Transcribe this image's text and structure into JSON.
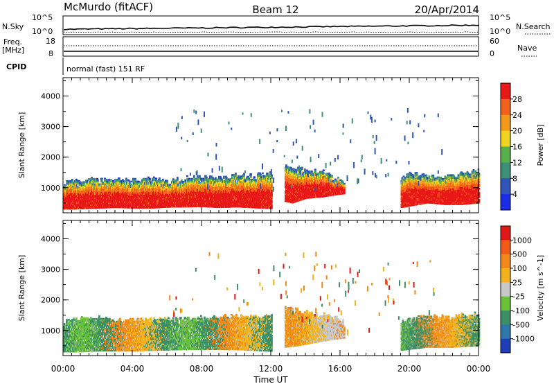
{
  "header": {
    "station": "McMurdo (fitACF)",
    "beam": "Beam 12",
    "date": "20/Apr/2014"
  },
  "strips": {
    "nsky_label": "N.Sky",
    "nsky_ticks": [
      "10^5",
      "10^0"
    ],
    "nsearch_label": "N.Search",
    "nsearch_ticks": [
      "10^5",
      "10^0"
    ],
    "freq_label": "Freq.",
    "freq_unit": "[MHz]",
    "freq_ticks": [
      "18",
      "8"
    ],
    "nave_label": "Nave",
    "nave_ticks": [
      "60",
      "0"
    ],
    "cpid_label": "CPID",
    "cpid_text": "normal (fast) 151 RF"
  },
  "chart_data": [
    {
      "type": "heatmap",
      "title": "",
      "xlabel": "Time UT",
      "ylabel": "Slant Range [km]",
      "x_ticks": [
        "00:00",
        "04:00",
        "08:00",
        "12:00",
        "16:00",
        "20:00",
        "00:00"
      ],
      "y_ticks": [
        1000,
        2000,
        3000,
        4000
      ],
      "ylim": [
        180,
        4600
      ],
      "colorbar": {
        "label": "Power [dB]",
        "ticks": [
          "4",
          "8",
          "12",
          "16",
          "20",
          "24",
          "28"
        ],
        "colors": [
          "#1c2be6",
          "#2f55b8",
          "#3d8f78",
          "#58b04a",
          "#f0d320",
          "#f29a1a",
          "#f2621a",
          "#e81818"
        ]
      },
      "series": [
        {
          "hours": [
            0,
            0.5,
            1.5,
            3,
            4,
            5,
            6,
            7,
            8,
            9,
            10,
            11,
            12
          ],
          "bottom_km": [
            300,
            300,
            320,
            350,
            330,
            330,
            360,
            370,
            380,
            350,
            370,
            340,
            320
          ],
          "top_km": [
            1100,
            1150,
            1200,
            1200,
            1180,
            1250,
            1150,
            1250,
            1300,
            1250,
            1350,
            1350,
            1400
          ]
        },
        {
          "hours": [
            12.8,
            13.2,
            14,
            15,
            15.5,
            16.2
          ],
          "bottom_km": [
            550,
            500,
            650,
            700,
            750,
            800
          ],
          "top_km": [
            1700,
            1600,
            1500,
            1450,
            1300,
            1200
          ]
        },
        {
          "hours": [
            19.5,
            20,
            21,
            22,
            23,
            24
          ],
          "bottom_km": [
            350,
            400,
            500,
            450,
            450,
            500
          ],
          "top_km": [
            1250,
            1400,
            1350,
            1300,
            1400,
            1500
          ]
        }
      ]
    },
    {
      "type": "heatmap",
      "title": "",
      "xlabel": "Time UT",
      "ylabel": "Slant Range [km]",
      "x_ticks": [
        "00:00",
        "04:00",
        "08:00",
        "12:00",
        "16:00",
        "20:00",
        "00:00"
      ],
      "y_ticks": [
        1000,
        2000,
        3000,
        4000
      ],
      "ylim": [
        180,
        4600
      ],
      "colorbar": {
        "label": "Velocity [m s^-1]",
        "ticks": [
          "1000",
          "500",
          "100",
          "25",
          "-25",
          "-100",
          "-500",
          "-1000"
        ],
        "colors": [
          "#1f3fb8",
          "#2f77a8",
          "#3d8f66",
          "#6ac23a",
          "#c8c8c8",
          "#f2b21a",
          "#f28a1a",
          "#f25a1a",
          "#e01818"
        ]
      },
      "series": [
        {
          "hours": [
            0,
            1,
            2,
            4,
            6,
            8,
            10,
            12
          ],
          "bottom_km": [
            300,
            300,
            330,
            330,
            360,
            380,
            370,
            320
          ],
          "top_km": [
            1250,
            1300,
            1350,
            1300,
            1300,
            1350,
            1400,
            1400
          ]
        },
        {
          "hours": [
            12.8,
            13.5,
            14.5,
            15.5,
            16.2
          ],
          "bottom_km": [
            450,
            500,
            600,
            700,
            750
          ],
          "top_km": [
            1700,
            1600,
            1500,
            1400,
            1250
          ]
        },
        {
          "hours": [
            19.5,
            21,
            22.5,
            24
          ],
          "bottom_km": [
            350,
            450,
            450,
            500
          ],
          "top_km": [
            1300,
            1400,
            1400,
            1500
          ]
        }
      ]
    }
  ]
}
